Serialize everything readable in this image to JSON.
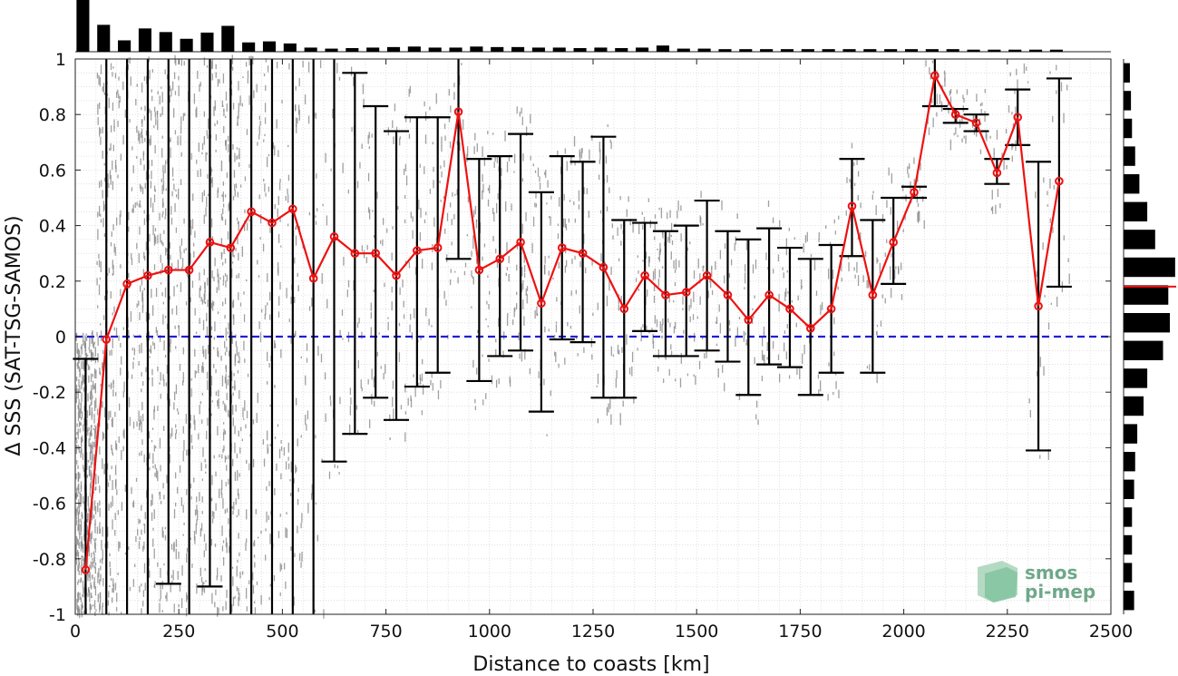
{
  "chart_data": {
    "type": "line",
    "xlabel": "Distance to coasts [km]",
    "ylabel": "Δ SSS (SAT-TSG-SAMOS)",
    "xlim": [
      0,
      2500
    ],
    "ylim": [
      -1,
      1
    ],
    "x_ticks": [
      "0",
      "250",
      "500",
      "750",
      "1000",
      "1250",
      "1500",
      "1750",
      "2000",
      "2250",
      "2500"
    ],
    "y_ticks": [
      "-1",
      "-0.8",
      "-0.6",
      "-0.4",
      "-0.2",
      "0",
      "0.2",
      "0.4",
      "0.6",
      "0.8",
      "1"
    ],
    "grid": true,
    "reference_line": {
      "y": 0,
      "color": "#1f1fd6",
      "style": "dashed"
    },
    "series": [
      {
        "x": [
          25,
          75,
          125,
          175,
          225,
          275,
          325,
          375,
          425,
          475,
          525,
          575,
          625,
          675,
          725,
          775,
          825,
          875,
          925,
          975,
          1025,
          1075,
          1125,
          1175,
          1225,
          1275,
          1325,
          1375,
          1425,
          1475,
          1525,
          1575,
          1625,
          1675,
          1725,
          1775,
          1825,
          1875,
          1925,
          1975,
          2025,
          2075,
          2125,
          2175,
          2225,
          2275,
          2325,
          2375
        ],
        "y": [
          -0.84,
          -0.01,
          0.19,
          0.22,
          0.24,
          0.24,
          0.34,
          0.32,
          0.45,
          0.41,
          0.46,
          0.21,
          0.36,
          0.3,
          0.3,
          0.22,
          0.31,
          0.32,
          0.81,
          0.24,
          0.28,
          0.34,
          0.12,
          0.32,
          0.3,
          0.25,
          0.1,
          0.22,
          0.15,
          0.16,
          0.22,
          0.15,
          0.06,
          0.15,
          0.1,
          0.03,
          0.1,
          0.47,
          0.15,
          0.34,
          0.52,
          0.94,
          0.8,
          0.77,
          0.59,
          0.79,
          0.11,
          0.56
        ],
        "error_low": [
          -1.0,
          -1.0,
          -1.0,
          -1.0,
          -0.89,
          -1.0,
          -0.9,
          -1.0,
          -1.0,
          -1.0,
          -1.0,
          -1.0,
          -0.45,
          -0.35,
          -0.22,
          -0.3,
          -0.18,
          -0.13,
          0.28,
          -0.16,
          -0.07,
          -0.05,
          -0.27,
          -0.01,
          -0.02,
          -0.22,
          -0.22,
          0.02,
          -0.07,
          -0.07,
          -0.05,
          -0.09,
          -0.21,
          -0.1,
          -0.11,
          -0.21,
          -0.13,
          0.29,
          -0.13,
          0.19,
          0.5,
          0.83,
          0.77,
          0.74,
          0.55,
          0.69,
          -0.41,
          0.18
        ],
        "error_high": [
          -0.08,
          1.0,
          1.0,
          1.0,
          1.0,
          1.0,
          1.0,
          1.0,
          1.0,
          1.0,
          1.0,
          1.0,
          1.0,
          0.95,
          0.83,
          0.74,
          0.79,
          0.79,
          1.0,
          0.64,
          0.65,
          0.73,
          0.52,
          0.65,
          0.63,
          0.72,
          0.42,
          0.41,
          0.38,
          0.4,
          0.49,
          0.38,
          0.35,
          0.39,
          0.32,
          0.28,
          0.33,
          0.64,
          0.42,
          0.5,
          0.54,
          1.0,
          0.82,
          0.8,
          0.64,
          0.89,
          0.63,
          0.93
        ],
        "color": "#ee1111"
      }
    ],
    "top_histogram": {
      "bins": [
        25,
        75,
        125,
        175,
        225,
        275,
        325,
        375,
        425,
        475,
        525,
        575,
        625,
        675,
        725,
        775,
        825,
        875,
        925,
        975,
        1025,
        1075,
        1125,
        1175,
        1225,
        1275,
        1325,
        1375,
        1425,
        1475,
        1525,
        1575,
        1625,
        1675,
        1725,
        1775,
        1825,
        1875,
        1925,
        1975,
        2025,
        2075,
        2125,
        2175,
        2225,
        2275,
        2325,
        2375
      ],
      "values": [
        1.0,
        0.52,
        0.22,
        0.45,
        0.38,
        0.25,
        0.37,
        0.5,
        0.18,
        0.2,
        0.16,
        0.08,
        0.06,
        0.07,
        0.08,
        0.09,
        0.1,
        0.08,
        0.08,
        0.1,
        0.09,
        0.09,
        0.08,
        0.08,
        0.07,
        0.08,
        0.07,
        0.08,
        0.12,
        0.06,
        0.06,
        0.05,
        0.05,
        0.05,
        0.05,
        0.05,
        0.05,
        0.05,
        0.05,
        0.05,
        0.05,
        0.05,
        0.05,
        0.04,
        0.04,
        0.04,
        0.04,
        0.04
      ]
    },
    "right_histogram": {
      "bins": [
        0.95,
        0.85,
        0.75,
        0.65,
        0.55,
        0.45,
        0.35,
        0.25,
        0.15,
        0.05,
        -0.05,
        -0.15,
        -0.25,
        -0.35,
        -0.45,
        -0.55,
        -0.65,
        -0.75,
        -0.85,
        -0.95
      ],
      "values": [
        0.12,
        0.14,
        0.16,
        0.22,
        0.3,
        0.45,
        0.6,
        0.98,
        0.85,
        0.88,
        0.75,
        0.45,
        0.38,
        0.26,
        0.22,
        0.2,
        0.16,
        0.16,
        0.16,
        0.2
      ],
      "median": 0.18
    }
  },
  "logo": {
    "line1": "smos",
    "line2": "pi-mep"
  },
  "colors": {
    "mean_line": "#ee1111",
    "scatter": "#8a8a8a",
    "zero_line": "#1f1fd6",
    "errorbar": "#000000"
  }
}
